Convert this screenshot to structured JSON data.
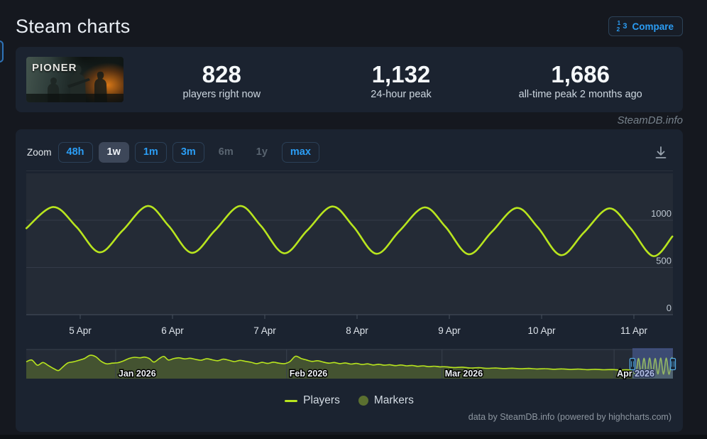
{
  "page_title": "Steam charts",
  "compare": {
    "label": "Compare"
  },
  "game": {
    "name": "PIONER"
  },
  "stats": [
    {
      "value": "828",
      "label": "players right now"
    },
    {
      "value": "1,132",
      "label": "24-hour peak"
    },
    {
      "value": "1,686",
      "label": "all-time peak 2 months ago"
    }
  ],
  "watermark": "SteamDB.info",
  "toolbar": {
    "zoom_label": "Zoom",
    "buttons": [
      {
        "label": "48h",
        "state": "normal"
      },
      {
        "label": "1w",
        "state": "selected"
      },
      {
        "label": "1m",
        "state": "normal"
      },
      {
        "label": "3m",
        "state": "normal"
      },
      {
        "label": "6m",
        "state": "disabled"
      },
      {
        "label": "1y",
        "state": "disabled"
      },
      {
        "label": "max",
        "state": "normal"
      }
    ]
  },
  "legend": {
    "players_label": "Players",
    "markers_label": "Markers"
  },
  "footer_credit": "data by SteamDB.info (powered by highcharts.com)",
  "colors": {
    "accent_blue": "#2b9df4",
    "line": "#b8e51e",
    "marker": "#5b7030",
    "grid": "#333b48",
    "axis": "#47505e",
    "plot_bg": "#242b36",
    "selection": "rgba(96,118,200,0.42)",
    "handle": "#55abe3",
    "nav_fill": "rgba(183,229,30,0.22)"
  },
  "chart_data": {
    "type": "line",
    "series": [
      {
        "name": "Players",
        "color": "#b8e51e"
      }
    ],
    "y_axis": {
      "ticks": [
        0,
        500,
        1000
      ]
    },
    "x_axis": {
      "tick_hours": [
        24,
        48,
        72,
        96,
        120,
        144,
        168
      ],
      "labels": [
        "5 Apr",
        "6 Apr",
        "7 Apr",
        "8 Apr",
        "9 Apr",
        "10 Apr",
        "11 Apr"
      ]
    },
    "points_hours_players": [
      [
        10,
        915
      ],
      [
        17,
        1140
      ],
      [
        23,
        930
      ],
      [
        29,
        660
      ],
      [
        35,
        890
      ],
      [
        41.5,
        1150
      ],
      [
        47,
        940
      ],
      [
        53,
        655
      ],
      [
        59,
        890
      ],
      [
        65.5,
        1150
      ],
      [
        71,
        940
      ],
      [
        77,
        650
      ],
      [
        83,
        890
      ],
      [
        89.5,
        1145
      ],
      [
        95,
        935
      ],
      [
        101,
        645
      ],
      [
        107,
        885
      ],
      [
        113.5,
        1135
      ],
      [
        119,
        930
      ],
      [
        125,
        640
      ],
      [
        131,
        875
      ],
      [
        137.5,
        1130
      ],
      [
        143,
        925
      ],
      [
        149,
        630
      ],
      [
        155,
        870
      ],
      [
        161.5,
        1125
      ],
      [
        167,
        920
      ],
      [
        173,
        620
      ],
      [
        178,
        828
      ]
    ],
    "navigator": {
      "month_days": [
        16.1,
        46.9,
        74.9,
        105.9
      ],
      "month_labels": [
        "Jan 2026",
        "Feb 2026",
        "Mar 2026",
        "Apr 2026"
      ],
      "selection_days": [
        109.2,
        116.5
      ],
      "points_day_players": [
        [
          0,
          1150
        ],
        [
          1,
          1230
        ],
        [
          2,
          1000
        ],
        [
          3,
          1120
        ],
        [
          4,
          980
        ],
        [
          5,
          840
        ],
        [
          5.8,
          760
        ],
        [
          6.5,
          900
        ],
        [
          7.5,
          1100
        ],
        [
          8.5,
          1150
        ],
        [
          9.5,
          1220
        ],
        [
          10.5,
          1300
        ],
        [
          11.5,
          1440
        ],
        [
          12.5,
          1380
        ],
        [
          13.5,
          1170
        ],
        [
          14.5,
          1060
        ],
        [
          15.5,
          1090
        ],
        [
          16.5,
          1110
        ],
        [
          17.5,
          1190
        ],
        [
          18.5,
          1300
        ],
        [
          19.5,
          1350
        ],
        [
          20.5,
          1330
        ],
        [
          21.3,
          1360
        ],
        [
          22.2,
          1290
        ],
        [
          23,
          1140
        ],
        [
          24,
          1300
        ],
        [
          24.8,
          1390
        ],
        [
          25.6,
          1230
        ],
        [
          26.5,
          1290
        ],
        [
          27.5,
          1330
        ],
        [
          28.5,
          1280
        ],
        [
          29.5,
          1310
        ],
        [
          30.5,
          1260
        ],
        [
          31.5,
          1220
        ],
        [
          32.5,
          1290
        ],
        [
          33.5,
          1240
        ],
        [
          34.5,
          1200
        ],
        [
          35.5,
          1270
        ],
        [
          36.5,
          1220
        ],
        [
          37.5,
          1160
        ],
        [
          38.5,
          1215
        ],
        [
          39.5,
          1170
        ],
        [
          40.5,
          1130
        ],
        [
          41.5,
          1070
        ],
        [
          42.5,
          1125
        ],
        [
          43.5,
          1080
        ],
        [
          44.5,
          1135
        ],
        [
          45.5,
          1090
        ],
        [
          46.5,
          1070
        ],
        [
          47.5,
          1160
        ],
        [
          48.5,
          1400
        ],
        [
          49.5,
          1300
        ],
        [
          50.5,
          1230
        ],
        [
          51.5,
          1170
        ],
        [
          52.5,
          1200
        ],
        [
          53.5,
          1140
        ],
        [
          54.5,
          1090
        ],
        [
          55.5,
          1120
        ],
        [
          56.5,
          1070
        ],
        [
          57.5,
          1100
        ],
        [
          58.5,
          1050
        ],
        [
          59.5,
          1080
        ],
        [
          60.5,
          1030
        ],
        [
          61.5,
          1060
        ],
        [
          62.5,
          1010
        ],
        [
          63.5,
          1040
        ],
        [
          64.5,
          1000
        ],
        [
          65.5,
          1020
        ],
        [
          66.5,
          980
        ],
        [
          67.5,
          1010
        ],
        [
          68.5,
          970
        ],
        [
          69.5,
          990
        ],
        [
          70.5,
          950
        ],
        [
          71.5,
          970
        ],
        [
          72.5,
          935
        ],
        [
          73.5,
          955
        ],
        [
          74.5,
          925
        ],
        [
          75.5,
          930
        ],
        [
          77,
          895
        ],
        [
          78.5,
          910
        ],
        [
          80,
          875
        ],
        [
          81.5,
          890
        ],
        [
          83,
          860
        ],
        [
          84.5,
          875
        ],
        [
          86,
          850
        ],
        [
          87.5,
          865
        ],
        [
          89,
          840
        ],
        [
          90.5,
          855
        ],
        [
          92,
          830
        ],
        [
          93.5,
          845
        ],
        [
          95,
          820
        ],
        [
          96.5,
          835
        ],
        [
          98,
          810
        ],
        [
          99.5,
          825
        ],
        [
          101,
          800
        ],
        [
          102.5,
          815
        ],
        [
          104,
          795
        ],
        [
          105.5,
          805
        ],
        [
          107,
          785
        ],
        [
          108,
          795
        ],
        [
          109,
          770
        ],
        [
          109.8,
          640
        ],
        [
          110.3,
          1300
        ],
        [
          110.8,
          620
        ],
        [
          111.3,
          1310
        ],
        [
          111.8,
          615
        ],
        [
          112.3,
          1320
        ],
        [
          112.8,
          610
        ],
        [
          113.3,
          1305
        ],
        [
          113.8,
          605
        ],
        [
          114.3,
          1315
        ],
        [
          114.8,
          600
        ],
        [
          115.3,
          1320
        ],
        [
          115.8,
          595
        ],
        [
          116.3,
          1330
        ],
        [
          116.5,
          950
        ]
      ]
    }
  }
}
